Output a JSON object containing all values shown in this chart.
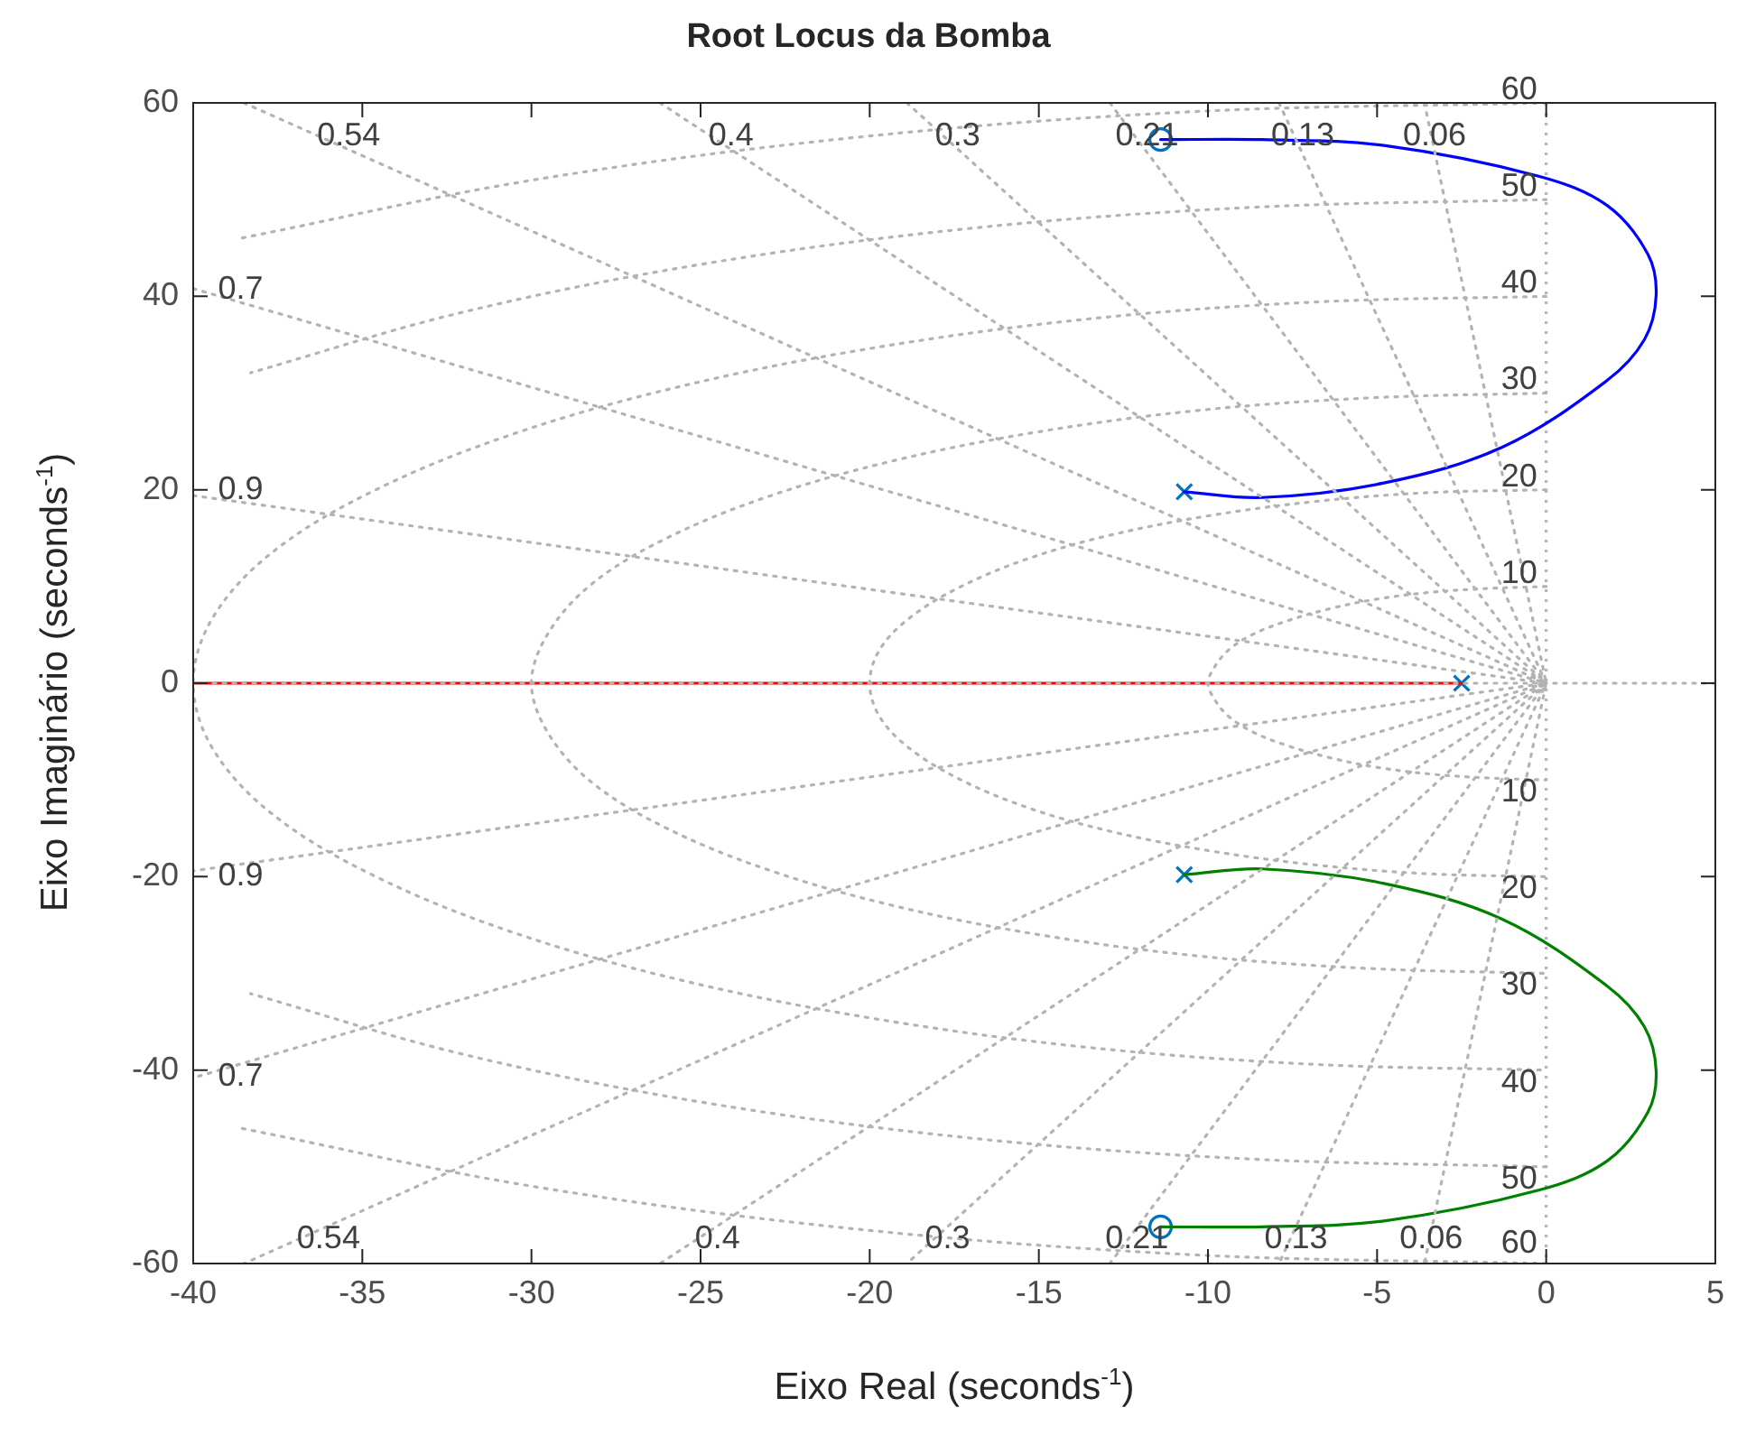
{
  "chart_data": {
    "type": "line",
    "title": "Root Locus da Bomba",
    "xlabel": "Eixo Real (seconds$^{-1}$)",
    "ylabel": "Eixo Imaginário (seconds$^{-1}$)",
    "xlim": [
      -40,
      5
    ],
    "xticks": [
      -40,
      -35,
      -30,
      -25,
      -20,
      -15,
      -10,
      -5,
      0,
      5
    ],
    "ylim": [
      -60,
      60
    ],
    "yticks": [
      -60,
      -40,
      -20,
      0,
      20,
      40,
      60
    ],
    "grid": false,
    "legend": false,
    "ref_lines": [
      {
        "axis": "x",
        "value": 0,
        "color": "#b3b3b3",
        "line_style": "dotted"
      }
    ],
    "series": [
      {
        "color": "#b3b3b3",
        "line_style": "dotted",
        "marker": "none",
        "x": [
          -40,
          5
        ],
        "values": [
          0,
          0
        ]
      },
      {
        "color": "#b3b3b3",
        "line_style": "dotted",
        "marker": "none",
        "x": [
          -3.6,
          0,
          -3.6
        ],
        "values": [
          60,
          0,
          -60
        ]
      },
      {
        "color": "#b3b3b3",
        "line_style": "dotted",
        "marker": "none",
        "x": [
          -7.9,
          0,
          -7.9
        ],
        "values": [
          60,
          0,
          -60
        ]
      },
      {
        "color": "#b3b3b3",
        "line_style": "dotted",
        "marker": "none",
        "x": [
          -12.9,
          0,
          -12.9
        ],
        "values": [
          60,
          0,
          -60
        ]
      },
      {
        "color": "#b3b3b3",
        "line_style": "dotted",
        "marker": "none",
        "x": [
          -18.9,
          0,
          -18.9
        ],
        "values": [
          60,
          0,
          -60
        ]
      },
      {
        "color": "#b3b3b3",
        "line_style": "dotted",
        "marker": "none",
        "x": [
          -26.2,
          0,
          -26.2
        ],
        "values": [
          60,
          0,
          -60
        ]
      },
      {
        "color": "#b3b3b3",
        "line_style": "dotted",
        "marker": "none",
        "x": [
          -38.5,
          0,
          -38.5
        ],
        "values": [
          60,
          0,
          -60
        ]
      },
      {
        "color": "#b3b3b3",
        "line_style": "dotted",
        "marker": "none",
        "x": [
          -40,
          0,
          -40
        ],
        "values": [
          40.8,
          0,
          -40.8
        ]
      },
      {
        "color": "#b3b3b3",
        "line_style": "dotted",
        "marker": "none",
        "x": [
          -40,
          0,
          -40
        ],
        "values": [
          19.4,
          0,
          -19.4
        ]
      },
      {
        "color": "#b3b3b3",
        "line_style": "dotted",
        "marker": "none",
        "x": [
          0,
          -1.7,
          -3.4,
          -5,
          -6.4,
          -7.7,
          -8.7,
          -9.4,
          -9.8,
          -10,
          -9.8,
          -9.4,
          -8.7,
          -7.7,
          -6.4,
          -5,
          -3.4,
          -1.7,
          0
        ],
        "values": [
          10,
          9.8,
          9.4,
          8.7,
          7.7,
          6.4,
          5,
          3.4,
          1.7,
          0,
          -1.7,
          -3.4,
          -5,
          -6.4,
          -7.7,
          -8.7,
          -9.4,
          -9.8,
          -10
        ]
      },
      {
        "color": "#b3b3b3",
        "line_style": "dotted",
        "marker": "none",
        "x": [
          0,
          -3.5,
          -6.8,
          -10,
          -12.9,
          -15.3,
          -17.3,
          -18.8,
          -19.7,
          -20,
          -19.7,
          -18.8,
          -17.3,
          -15.3,
          -12.9,
          -10,
          -6.8,
          -3.5,
          0
        ],
        "values": [
          20,
          19.7,
          18.8,
          17.3,
          15.3,
          12.9,
          10,
          6.8,
          3.5,
          0,
          -3.5,
          -6.8,
          -10,
          -12.9,
          -15.3,
          -17.3,
          -18.8,
          -19.7,
          -20
        ]
      },
      {
        "color": "#b3b3b3",
        "line_style": "dotted",
        "marker": "none",
        "x": [
          0,
          -5.2,
          -10.3,
          -15,
          -19.3,
          -23,
          -26,
          -28.2,
          -29.5,
          -30,
          -29.5,
          -28.2,
          -26,
          -23,
          -19.3,
          -15,
          -10.3,
          -5.2,
          0
        ],
        "values": [
          30,
          29.5,
          28.2,
          26,
          23,
          19.3,
          15,
          10.3,
          5.2,
          0,
          -5.2,
          -10.3,
          -15,
          -19.3,
          -23,
          -26,
          -28.2,
          -29.5,
          -30
        ]
      },
      {
        "color": "#b3b3b3",
        "line_style": "dotted",
        "marker": "none",
        "x": [
          0,
          -6.9,
          -13.7,
          -20,
          -25.7,
          -30.6,
          -34.6,
          -37.6,
          -39.4,
          -40,
          -39.4,
          -37.6,
          -34.6,
          -30.6,
          -25.7,
          -20,
          -13.7,
          -6.9,
          0
        ],
        "values": [
          40,
          39.4,
          37.6,
          34.6,
          30.6,
          25.7,
          20,
          13.7,
          6.9,
          0,
          -6.9,
          -13.7,
          -20,
          -25.7,
          -30.6,
          -34.6,
          -37.6,
          -39.4,
          -40
        ]
      },
      {
        "color": "#b3b3b3",
        "line_style": "dotted",
        "marker": "none",
        "x": [
          0,
          -8.7,
          -17.1,
          -25,
          -32.1,
          -38.3
        ],
        "values": [
          50,
          49.2,
          47,
          43.3,
          38.3,
          32.1
        ]
      },
      {
        "color": "#b3b3b3",
        "line_style": "dotted",
        "marker": "none",
        "x": [
          0,
          -8.7,
          -17.1,
          -25,
          -32.1,
          -38.3
        ],
        "values": [
          -50,
          -49.2,
          -47,
          -43.3,
          -38.3,
          -32.1
        ]
      },
      {
        "color": "#b3b3b3",
        "line_style": "dotted",
        "marker": "none",
        "x": [
          0,
          -10.4,
          -20.5,
          -30,
          -38.6
        ],
        "values": [
          60,
          59.1,
          56.4,
          52,
          46
        ]
      },
      {
        "color": "#b3b3b3",
        "line_style": "dotted",
        "marker": "none",
        "x": [
          0,
          -10.4,
          -20.5,
          -30,
          -38.6
        ],
        "values": [
          -60,
          -59.1,
          -56.4,
          -52,
          -46
        ]
      },
      {
        "color": "#ff0000",
        "line_style": "solid",
        "marker": "none",
        "x": [
          -40,
          -2.5
        ],
        "values": [
          0,
          0
        ]
      },
      {
        "color": "#0000ff",
        "line_style": "solid",
        "marker": "none",
        "x": [
          -10.7,
          -8.4,
          -4.8,
          -1.3,
          1.8,
          2.9,
          3.25,
          3.0,
          1.8,
          -0.2,
          -4.8,
          -8.4,
          -11.4
        ],
        "values": [
          19.8,
          19.2,
          20.7,
          24.4,
          31.3,
          35.5,
          40.1,
          44.4,
          49.4,
          52.4,
          55.6,
          56.2,
          56.2
        ]
      },
      {
        "color": "#008000",
        "line_style": "solid",
        "marker": "none",
        "x": [
          -10.7,
          -8.4,
          -4.8,
          -1.3,
          1.8,
          2.9,
          3.25,
          3.0,
          1.8,
          -0.2,
          -4.8,
          -8.4,
          -11.4
        ],
        "values": [
          -19.8,
          -19.2,
          -20.7,
          -24.4,
          -31.3,
          -35.5,
          -40.1,
          -44.4,
          -49.4,
          -52.4,
          -55.6,
          -56.2,
          -56.2
        ]
      },
      {
        "type": "scatter",
        "color": "#0072bd",
        "marker": "cross",
        "x": [
          -10.7,
          -10.7,
          -2.5
        ],
        "values": [
          19.8,
          -19.8,
          0
        ]
      },
      {
        "type": "scatter",
        "color": "#0072bd",
        "marker": "circle",
        "x": [
          -11.4,
          -11.4
        ],
        "values": [
          56.2,
          -56.2
        ]
      }
    ],
    "annotations": [
      {
        "text": "0.54",
        "x": -35.4,
        "y": 55.2
      },
      {
        "text": "0.4",
        "x": -24.1,
        "y": 55.2
      },
      {
        "text": "0.3",
        "x": -17.4,
        "y": 55.2
      },
      {
        "text": "0.21",
        "x": -11.8,
        "y": 55.2
      },
      {
        "text": "0.13",
        "x": -7.2,
        "y": 55.2
      },
      {
        "text": "0.06",
        "x": -3.3,
        "y": 55.2
      },
      {
        "text": "0.54",
        "x": -36.0,
        "y": -56.2
      },
      {
        "text": "0.4",
        "x": -24.5,
        "y": -56.2
      },
      {
        "text": "0.3",
        "x": -17.7,
        "y": -56.2
      },
      {
        "text": "0.21",
        "x": -12.1,
        "y": -56.2
      },
      {
        "text": "0.13",
        "x": -7.4,
        "y": -56.2
      },
      {
        "text": "0.06",
        "x": -3.4,
        "y": -56.2
      },
      {
        "text": "0.7",
        "x": -38.6,
        "y": 39.4
      },
      {
        "text": "0.9",
        "x": -38.6,
        "y": 18.7
      },
      {
        "text": "0.9",
        "x": -38.6,
        "y": -18.7
      },
      {
        "text": "0.7",
        "x": -38.6,
        "y": -39.4
      },
      {
        "text": "60",
        "x": -0.8,
        "y": 60
      },
      {
        "text": "50",
        "x": -0.8,
        "y": 50
      },
      {
        "text": "40",
        "x": -0.8,
        "y": 40
      },
      {
        "text": "30",
        "x": -0.8,
        "y": 30
      },
      {
        "text": "20",
        "x": -0.8,
        "y": 20
      },
      {
        "text": "10",
        "x": -0.8,
        "y": 10
      },
      {
        "text": "10",
        "x": -0.8,
        "y": -10
      },
      {
        "text": "20",
        "x": -0.8,
        "y": -20
      },
      {
        "text": "30",
        "x": -0.8,
        "y": -30
      },
      {
        "text": "40",
        "x": -0.8,
        "y": -40
      },
      {
        "text": "50",
        "x": -0.8,
        "y": -50
      },
      {
        "text": "60",
        "x": -0.8,
        "y": -60
      }
    ]
  }
}
